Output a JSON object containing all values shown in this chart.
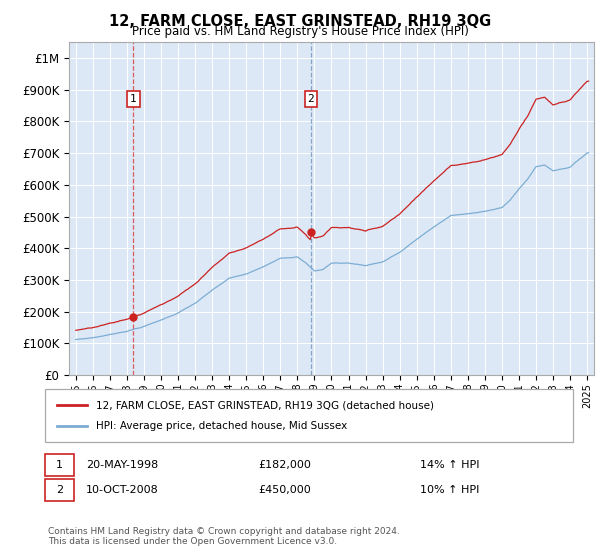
{
  "title": "12, FARM CLOSE, EAST GRINSTEAD, RH19 3QG",
  "subtitle": "Price paid vs. HM Land Registry's House Price Index (HPI)",
  "ytick_values": [
    0,
    100000,
    200000,
    300000,
    400000,
    500000,
    600000,
    700000,
    800000,
    900000,
    1000000
  ],
  "ylim": [
    0,
    1050000
  ],
  "hpi_color": "#7dadd4",
  "price_color": "#cc2222",
  "sale1_year": 1998.38,
  "sale1_price": 182000,
  "sale2_year": 2008.79,
  "sale2_price": 450000,
  "legend_label1": "12, FARM CLOSE, EAST GRINSTEAD, RH19 3QG (detached house)",
  "legend_label2": "HPI: Average price, detached house, Mid Sussex",
  "annotation1_date": "20-MAY-1998",
  "annotation1_price": "£182,000",
  "annotation1_hpi": "14% ↑ HPI",
  "annotation2_date": "10-OCT-2008",
  "annotation2_price": "£450,000",
  "annotation2_hpi": "10% ↑ HPI",
  "footnote": "Contains HM Land Registry data © Crown copyright and database right 2024.\nThis data is licensed under the Open Government Licence v3.0.",
  "plot_bg_color": "#dce8f5",
  "grid_color": "#ffffff"
}
